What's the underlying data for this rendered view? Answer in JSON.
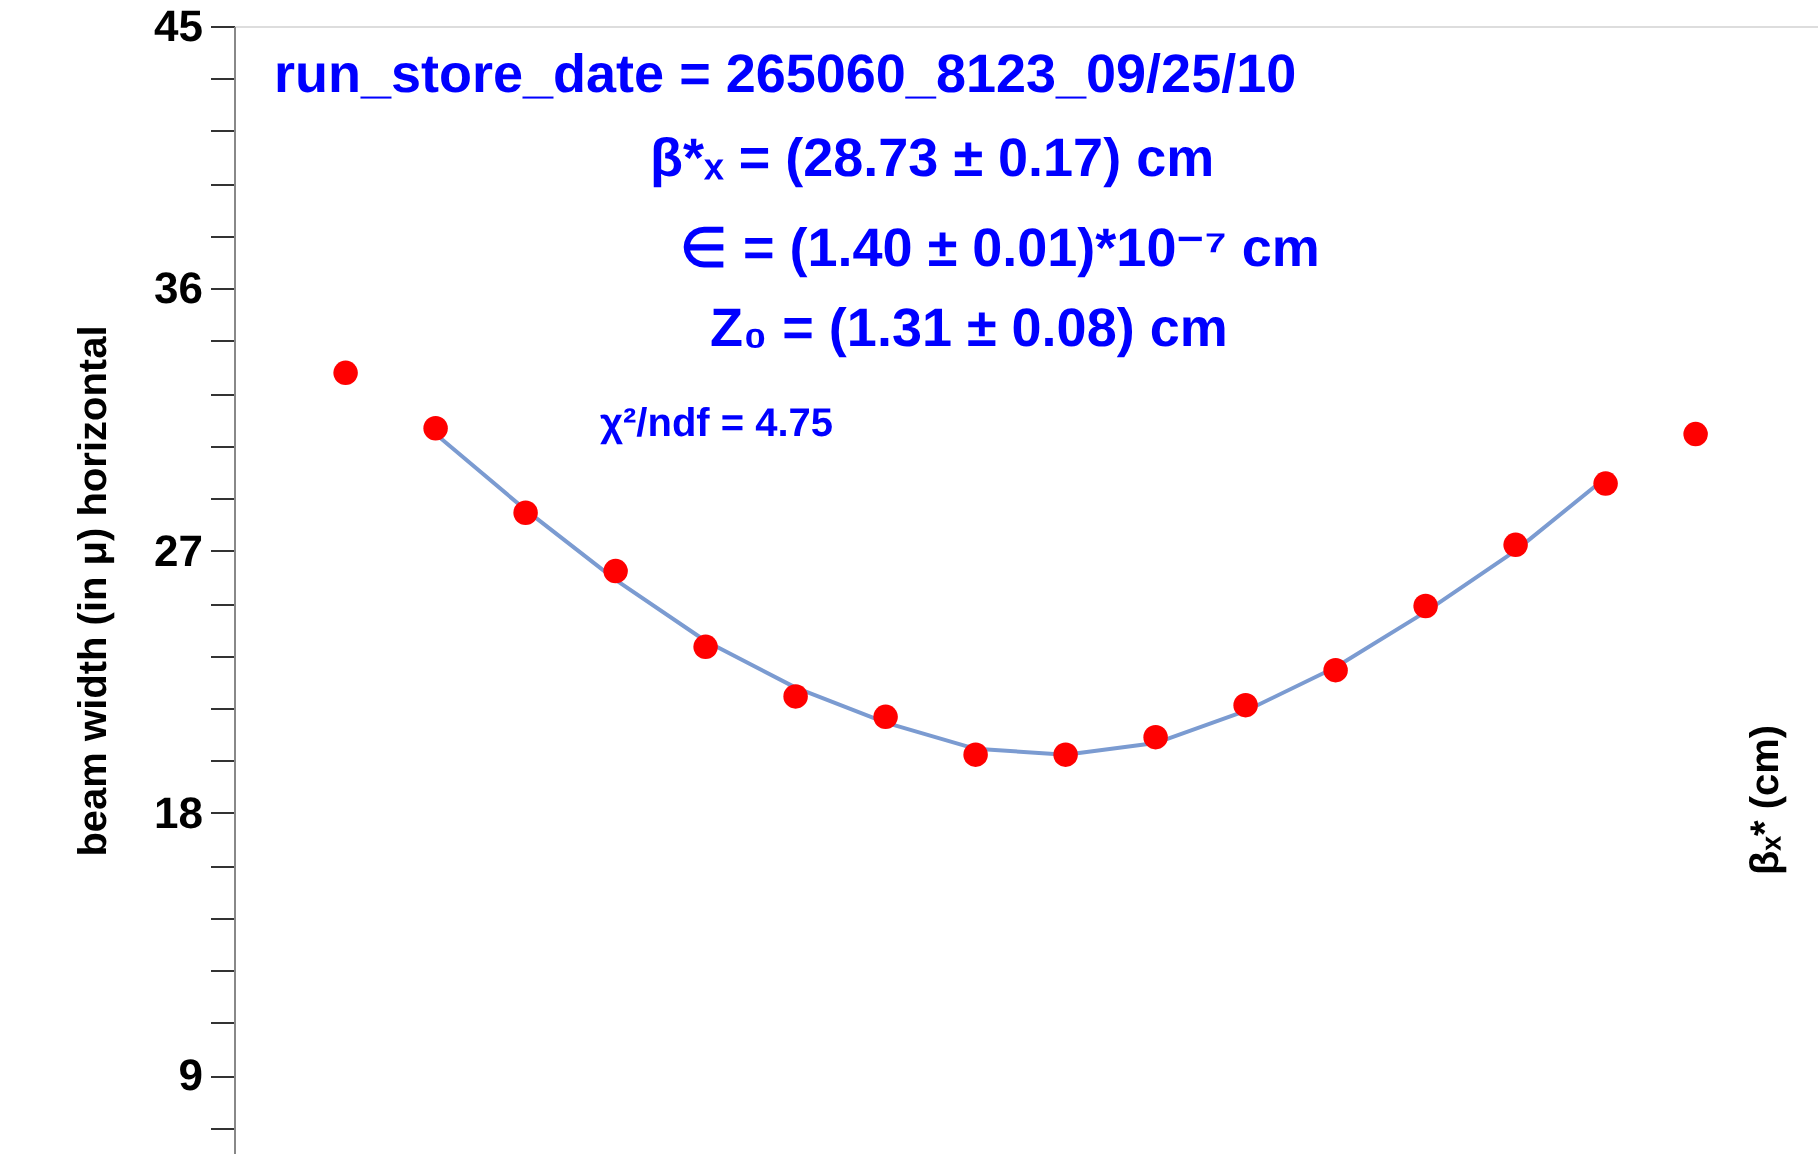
{
  "chart_data": {
    "type": "scatter",
    "ylabel": "beam width (in μ) horizontal",
    "annotations": [
      "run_store_date =  265060_8123_09/25/10",
      "β*ₓ   =  (28.73 ± 0.17) cm",
      "∈   =  (1.40 ± 0.01)*10⁻⁷ cm",
      "Z₀   =  (1.31 ± 0.08) cm",
      "χ²/ndf  =  4.75",
      "βₓ* (cm)"
    ],
    "categories": [
      null,
      null,
      null,
      null,
      null,
      null,
      null,
      null,
      null,
      null,
      null,
      null,
      null,
      null,
      null,
      null
    ],
    "ylim": [
      6.3,
      45
    ],
    "yticks": [
      {
        "value": 7.2,
        "label": null
      },
      9,
      {
        "value": 10.8,
        "label": null
      },
      {
        "value": 12.6,
        "label": null
      },
      {
        "value": 14.4,
        "label": null
      },
      {
        "value": 16.2,
        "label": null
      },
      18,
      {
        "value": 19.8,
        "label": null
      },
      {
        "value": 21.6,
        "label": null
      },
      {
        "value": 23.4,
        "label": null
      },
      {
        "value": 25.2,
        "label": null
      },
      27,
      {
        "value": 28.8,
        "label": null
      },
      {
        "value": 30.6,
        "label": null
      },
      {
        "value": 32.4,
        "label": null
      },
      {
        "value": 34.2,
        "label": null
      },
      36,
      {
        "value": 37.8,
        "label": null
      },
      {
        "value": 39.6,
        "label": null
      },
      {
        "value": 41.4,
        "label": null
      },
      {
        "value": 43.2,
        "label": null
      },
      45
    ],
    "tick_labels": "y",
    "grid": false,
    "series": [
      {
        "type": "line",
        "color": "#7b9bd1",
        "values": [
          null,
          31.0,
          28.4,
          26.0,
          23.9,
          22.3,
          21.1,
          20.2,
          20.0,
          20.4,
          21.5,
          23.0,
          24.9,
          27.0,
          29.5,
          null
        ]
      },
      {
        "color": "#ff0000",
        "marker": "circle",
        "values": [
          33.1,
          31.2,
          28.3,
          26.3,
          23.7,
          22.0,
          21.3,
          20.0,
          20.0,
          20.6,
          21.7,
          22.9,
          25.1,
          27.2,
          29.3,
          31.0
        ]
      }
    ]
  }
}
